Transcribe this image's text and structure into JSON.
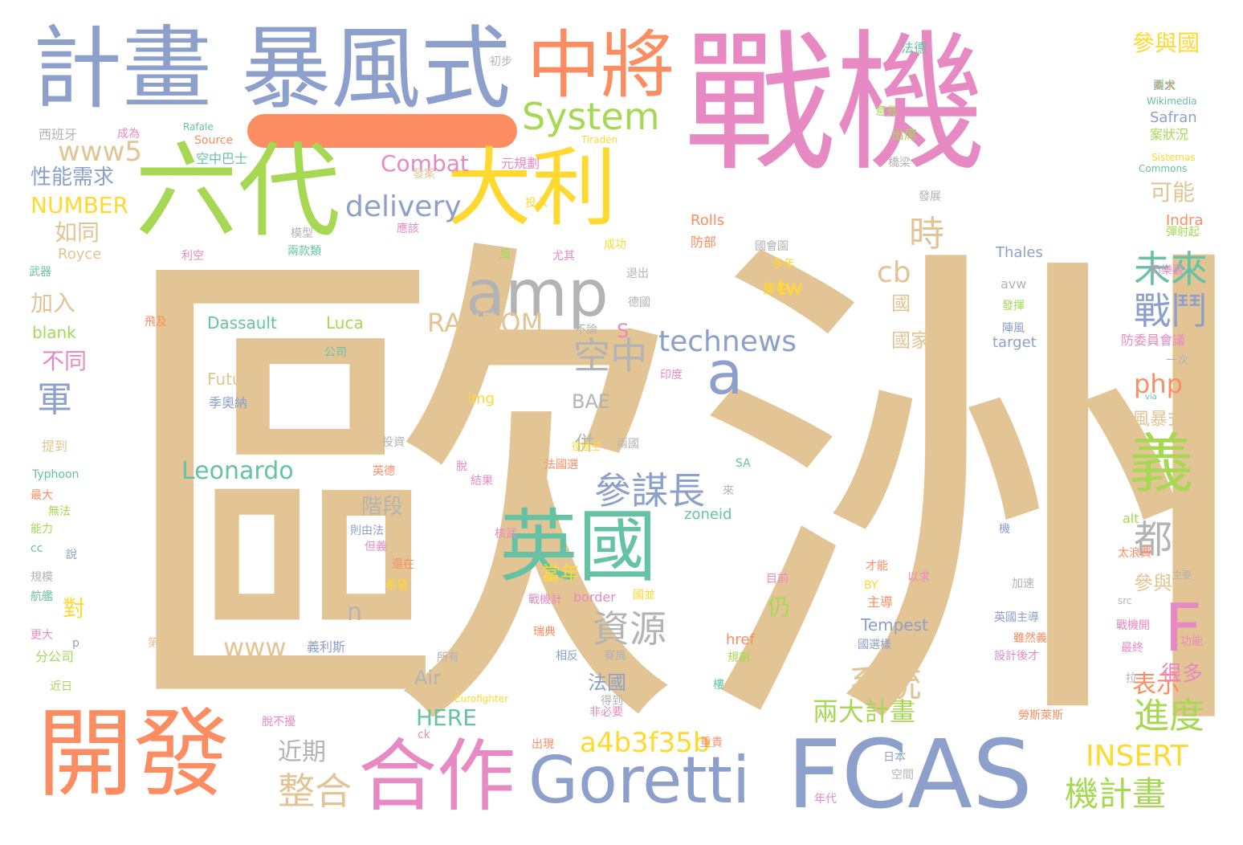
{
  "palette": {
    "tan": "#e3c494",
    "pink": "#e78ac3",
    "blue": "#8da0cb",
    "orange": "#fc8d62",
    "green": "#a6d854",
    "yellow": "#ffd92f",
    "teal": "#66c2a5",
    "gray": "#b3b3b3"
  },
  "words": [
    {
      "t": "歐洲",
      "c": "tan"
    },
    {
      "t": "戰機",
      "c": "pink"
    },
    {
      "t": "計畫",
      "c": "blue"
    },
    {
      "t": "暴風式",
      "c": "blue"
    },
    {
      "t": "中將",
      "c": "orange"
    },
    {
      "t": "六代",
      "c": "green"
    },
    {
      "t": "大利",
      "c": "yellow"
    },
    {
      "t": "開發",
      "c": "orange"
    },
    {
      "t": "合作",
      "c": "pink"
    },
    {
      "t": "FCAS",
      "c": "blue"
    },
    {
      "t": "Goretti",
      "c": "blue"
    },
    {
      "t": "英國",
      "c": "teal"
    },
    {
      "t": "amp",
      "c": "gray"
    },
    {
      "t": "System",
      "c": "green"
    },
    {
      "t": "義",
      "c": "green"
    },
    {
      "t": "F",
      "c": "pink"
    },
    {
      "t": "a",
      "c": "blue"
    },
    {
      "t": "未來",
      "c": "teal"
    },
    {
      "t": "戰鬥",
      "c": "blue"
    },
    {
      "t": "參謀長",
      "c": "blue"
    },
    {
      "t": "technews",
      "c": "blue"
    },
    {
      "t": "delivery",
      "c": "blue"
    },
    {
      "t": "RANDOM",
      "c": "tan"
    },
    {
      "t": "a4b3f35b",
      "c": "yellow"
    },
    {
      "t": "資源",
      "c": "gray"
    },
    {
      "t": "系統",
      "c": "tan"
    },
    {
      "t": "都",
      "c": "gray"
    },
    {
      "t": "進度",
      "c": "green"
    },
    {
      "t": "機計畫",
      "c": "green"
    },
    {
      "t": "INSERT",
      "c": "yellow"
    },
    {
      "t": "整合",
      "c": "tan"
    },
    {
      "t": "兩大計畫",
      "c": "green"
    },
    {
      "t": "空中",
      "c": "gray"
    },
    {
      "t": "軍",
      "c": "blue"
    },
    {
      "t": "Leonardo",
      "c": "teal"
    },
    {
      "t": "www5",
      "c": "tan"
    },
    {
      "t": "Combat",
      "c": "pink"
    },
    {
      "t": "php",
      "c": "orange"
    },
    {
      "t": "時",
      "c": "tan"
    },
    {
      "t": "cb",
      "c": "tan"
    },
    {
      "t": "tw",
      "c": "yellow"
    },
    {
      "t": "www",
      "c": "tan"
    },
    {
      "t": "近期",
      "c": "gray"
    },
    {
      "t": "表示",
      "c": "orange"
    },
    {
      "t": "NUMBER",
      "c": "yellow"
    },
    {
      "t": "性能需求",
      "c": "blue"
    },
    {
      "t": "如同",
      "c": "tan"
    },
    {
      "t": "加入",
      "c": "tan"
    },
    {
      "t": "不同",
      "c": "pink"
    },
    {
      "t": "參與國",
      "c": "yellow"
    },
    {
      "t": "可能",
      "c": "tan"
    },
    {
      "t": "HERE",
      "c": "teal"
    },
    {
      "t": "Air",
      "c": "gray"
    },
    {
      "t": "法國",
      "c": "blue"
    },
    {
      "t": "BAE",
      "c": "gray"
    },
    {
      "t": "階段",
      "c": "gray"
    },
    {
      "t": "很多",
      "c": "pink"
    },
    {
      "t": "n",
      "c": "gray"
    },
    {
      "t": "對",
      "c": "yellow"
    },
    {
      "t": "仍",
      "c": "green"
    },
    {
      "t": "當年",
      "c": "yellow"
    },
    {
      "t": "參與",
      "c": "tan"
    },
    {
      "t": "國家",
      "c": "tan"
    },
    {
      "t": "國",
      "c": "tan"
    },
    {
      "t": "S",
      "c": "pink"
    },
    {
      "t": "併",
      "c": "gray"
    },
    {
      "t": "blank",
      "c": "green"
    },
    {
      "t": "Dassault",
      "c": "teal"
    },
    {
      "t": "Luca",
      "c": "green"
    },
    {
      "t": "Future",
      "c": "tan"
    },
    {
      "t": "Tempest",
      "c": "blue"
    },
    {
      "t": "Rolls",
      "c": "orange"
    },
    {
      "t": "Royce",
      "c": "tan"
    },
    {
      "t": "Thales",
      "c": "blue"
    },
    {
      "t": "Indra",
      "c": "orange"
    },
    {
      "t": "Safran",
      "c": "blue"
    },
    {
      "t": "img",
      "c": "yellow"
    },
    {
      "t": "風暴式",
      "c": "tan"
    },
    {
      "t": "target",
      "c": "blue"
    },
    {
      "t": "avw",
      "c": "gray"
    },
    {
      "t": "zoneid",
      "c": "teal"
    },
    {
      "t": "border",
      "c": "pink"
    },
    {
      "t": "href",
      "c": "orange"
    },
    {
      "t": "alt",
      "c": "green"
    },
    {
      "t": "Typhoon",
      "c": "teal"
    },
    {
      "t": "Wikimedia",
      "c": "teal"
    },
    {
      "t": "Commons",
      "c": "teal"
    },
    {
      "t": "Sistemas",
      "c": "yellow"
    },
    {
      "t": "Eurofighter",
      "c": "yellow"
    },
    {
      "t": "Rafale",
      "c": "teal"
    },
    {
      "t": "Source",
      "c": "orange"
    },
    {
      "t": "Tiraden",
      "c": "yellow"
    },
    {
      "t": "西班牙",
      "c": "gray"
    },
    {
      "t": "成為",
      "c": "pink"
    },
    {
      "t": "空中巴士",
      "c": "teal"
    },
    {
      "t": "初步",
      "c": "gray"
    },
    {
      "t": "法德",
      "c": "teal"
    },
    {
      "t": "要求",
      "c": "orange"
    },
    {
      "t": "兩大",
      "c": "teal"
    },
    {
      "t": "意見",
      "c": "green"
    },
    {
      "t": "出席",
      "c": "green"
    },
    {
      "t": "案狀況",
      "c": "green"
    },
    {
      "t": "橋梁",
      "c": "gray"
    },
    {
      "t": "元規劃",
      "c": "pink"
    },
    {
      "t": "發案",
      "c": "tan"
    },
    {
      "t": "發展",
      "c": "gray"
    },
    {
      "t": "投入",
      "c": "yellow"
    },
    {
      "t": "應該",
      "c": "pink"
    },
    {
      "t": "模型",
      "c": "gray"
    },
    {
      "t": "利空",
      "c": "pink"
    },
    {
      "t": "兩款類",
      "c": "teal"
    },
    {
      "t": "風",
      "c": "green"
    },
    {
      "t": "尤其",
      "c": "pink"
    },
    {
      "t": "成功",
      "c": "yellow"
    },
    {
      "t": "防部",
      "c": "orange"
    },
    {
      "t": "國會園",
      "c": "gray"
    },
    {
      "t": "多年",
      "c": "yellow"
    },
    {
      "t": "退出",
      "c": "gray"
    },
    {
      "t": "德國",
      "c": "gray"
    },
    {
      "t": "集中",
      "c": "yellow"
    },
    {
      "t": "仍樂觀",
      "c": "pink"
    },
    {
      "t": "彈射起",
      "c": "green"
    },
    {
      "t": "武器",
      "c": "teal"
    },
    {
      "t": "飛及",
      "c": "orange"
    },
    {
      "t": "不論",
      "c": "gray"
    },
    {
      "t": "公司",
      "c": "teal"
    },
    {
      "t": "印度",
      "c": "pink"
    },
    {
      "t": "發揮",
      "c": "green"
    },
    {
      "t": "陣風",
      "c": "blue"
    },
    {
      "t": "防委員會議",
      "c": "pink"
    },
    {
      "t": "一次",
      "c": "gray"
    },
    {
      "t": "季奧納",
      "c": "blue"
    },
    {
      "t": "提到",
      "c": "tan"
    },
    {
      "t": "投資",
      "c": "gray"
    },
    {
      "t": "徑國空",
      "c": "yellow"
    },
    {
      "t": "兩國",
      "c": "gray"
    },
    {
      "t": "英德",
      "c": "orange"
    },
    {
      "t": "脫",
      "c": "pink"
    },
    {
      "t": "最大",
      "c": "orange"
    },
    {
      "t": "無法",
      "c": "green"
    },
    {
      "t": "能力",
      "c": "green"
    },
    {
      "t": "法國選",
      "c": "orange"
    },
    {
      "t": "結果",
      "c": "pink"
    },
    {
      "t": "SA",
      "c": "teal"
    },
    {
      "t": "來",
      "c": "gray"
    },
    {
      "t": "則由法",
      "c": "blue"
    },
    {
      "t": "但義",
      "c": "pink"
    },
    {
      "t": "還在",
      "c": "orange"
    },
    {
      "t": "核武",
      "c": "pink"
    },
    {
      "t": "機",
      "c": "blue"
    },
    {
      "t": "太浪費",
      "c": "orange"
    },
    {
      "t": "cc",
      "c": "teal"
    },
    {
      "t": "說",
      "c": "blue"
    },
    {
      "t": "規模",
      "c": "gray"
    },
    {
      "t": "航艦",
      "c": "teal"
    },
    {
      "t": "希望",
      "c": "yellow"
    },
    {
      "t": "戰機計",
      "c": "pink"
    },
    {
      "t": "國並",
      "c": "yellow"
    },
    {
      "t": "目前",
      "c": "pink"
    },
    {
      "t": "才能",
      "c": "orange"
    },
    {
      "t": "BY",
      "c": "yellow"
    },
    {
      "t": "以求",
      "c": "pink"
    },
    {
      "t": "主導",
      "c": "orange"
    },
    {
      "t": "加速",
      "c": "gray"
    },
    {
      "t": "主要",
      "c": "gray"
    },
    {
      "t": "src",
      "c": "gray"
    },
    {
      "t": "英國主導",
      "c": "blue"
    },
    {
      "t": "戰機開",
      "c": "pink"
    },
    {
      "t": "功能",
      "c": "pink"
    },
    {
      "t": "更大",
      "c": "pink"
    },
    {
      "t": "p",
      "c": "blue"
    },
    {
      "t": "第六代",
      "c": "tan"
    },
    {
      "t": "義利斯",
      "c": "blue"
    },
    {
      "t": "瑞典",
      "c": "orange"
    },
    {
      "t": "國選樣",
      "c": "blue"
    },
    {
      "t": "雖然義",
      "c": "orange"
    },
    {
      "t": "最終",
      "c": "pink"
    },
    {
      "t": "分公司",
      "c": "green"
    },
    {
      "t": "所有",
      "c": "gray"
    },
    {
      "t": "相反",
      "c": "blue"
    },
    {
      "t": "賽風",
      "c": "gray"
    },
    {
      "t": "規劃",
      "c": "green"
    },
    {
      "t": "設計後才",
      "c": "pink"
    },
    {
      "t": "近日",
      "c": "green"
    },
    {
      "t": "得到",
      "c": "gray"
    },
    {
      "t": "樓",
      "c": "teal"
    },
    {
      "t": "拉",
      "c": "gray"
    },
    {
      "t": "非必要",
      "c": "pink"
    },
    {
      "t": "勞斯萊斯",
      "c": "orange"
    },
    {
      "t": "脫不擾",
      "c": "pink"
    },
    {
      "t": "ck",
      "c": "pink"
    },
    {
      "t": "出現",
      "c": "orange"
    },
    {
      "t": "重責",
      "c": "orange"
    },
    {
      "t": "日本",
      "c": "blue"
    },
    {
      "t": "空間",
      "c": "gray"
    },
    {
      "t": "年代",
      "c": "pink"
    },
    {
      "t": "via",
      "c": "teal"
    }
  ]
}
